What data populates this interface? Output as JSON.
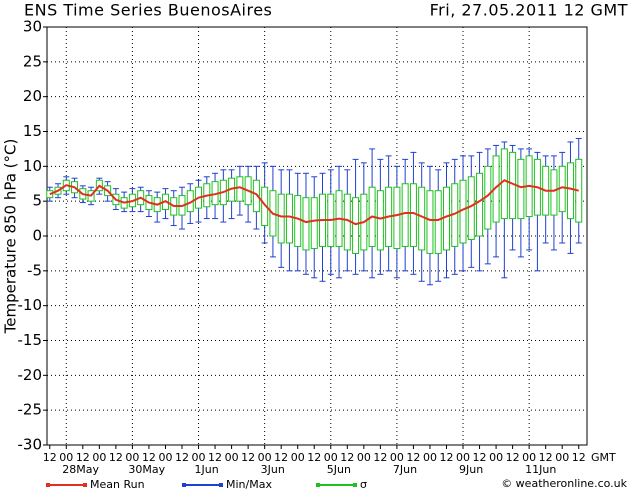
{
  "chart_data": {
    "type": "ensemble",
    "title": "ENS Time Series BuenosAires",
    "subtitle": "Fri, 27.05.2011 12 GMT",
    "y_label": "Temperature 850 hPa (°C)",
    "x_label": "GMT",
    "credit": "© weatheronline.co.uk",
    "xlim": [
      -2,
      390
    ],
    "ylim": [
      -30,
      30
    ],
    "yticks": [
      -30,
      -25,
      -20,
      -15,
      -10,
      -5,
      0,
      5,
      10,
      15,
      20,
      25,
      30
    ],
    "grid": true,
    "xticks": [
      {
        "value": 0,
        "label": "12"
      },
      {
        "value": 12,
        "label": "00"
      },
      {
        "value": 24,
        "label": "12"
      },
      {
        "value": 36,
        "label": "00"
      },
      {
        "value": 48,
        "label": "12"
      },
      {
        "value": 60,
        "label": "00"
      },
      {
        "value": 72,
        "label": "12"
      },
      {
        "value": 84,
        "label": "00"
      },
      {
        "value": 96,
        "label": "12"
      },
      {
        "value": 108,
        "label": "00"
      },
      {
        "value": 120,
        "label": "12"
      },
      {
        "value": 132,
        "label": "00"
      },
      {
        "value": 144,
        "label": "12"
      },
      {
        "value": 156,
        "label": "00"
      },
      {
        "value": 168,
        "label": "12"
      },
      {
        "value": 180,
        "label": "00"
      },
      {
        "value": 192,
        "label": "12"
      },
      {
        "value": 204,
        "label": "00"
      },
      {
        "value": 216,
        "label": "12"
      },
      {
        "value": 228,
        "label": "00"
      },
      {
        "value": 240,
        "label": "12"
      },
      {
        "value": 252,
        "label": "00"
      },
      {
        "value": 264,
        "label": "12"
      },
      {
        "value": 276,
        "label": "00"
      },
      {
        "value": 288,
        "label": "12"
      },
      {
        "value": 300,
        "label": "00"
      },
      {
        "value": 312,
        "label": "12"
      },
      {
        "value": 324,
        "label": "00"
      },
      {
        "value": 336,
        "label": "12"
      },
      {
        "value": 348,
        "label": "00"
      },
      {
        "value": 360,
        "label": "12"
      },
      {
        "value": 372,
        "label": "00"
      },
      {
        "value": 384,
        "label": "12"
      }
    ],
    "day_labels": [
      {
        "value": 12,
        "label": "28May"
      },
      {
        "value": 60,
        "label": "30May"
      },
      {
        "value": 108,
        "label": "1Jun"
      },
      {
        "value": 156,
        "label": "3Jun"
      },
      {
        "value": 204,
        "label": "5Jun"
      },
      {
        "value": 252,
        "label": "7Jun"
      },
      {
        "value": 300,
        "label": "9Jun"
      },
      {
        "value": 348,
        "label": "11Jun"
      }
    ],
    "x": [
      0,
      6,
      12,
      18,
      24,
      30,
      36,
      42,
      48,
      54,
      60,
      66,
      72,
      78,
      84,
      90,
      96,
      102,
      108,
      114,
      120,
      126,
      132,
      138,
      144,
      150,
      156,
      162,
      168,
      174,
      180,
      186,
      192,
      198,
      204,
      210,
      216,
      222,
      228,
      234,
      240,
      246,
      252,
      258,
      264,
      270,
      276,
      282,
      288,
      294,
      300,
      306,
      312,
      318,
      324,
      330,
      336,
      342,
      348,
      354,
      360,
      366,
      372,
      378,
      384
    ],
    "series": [
      {
        "name": "Mean Run",
        "color": "#e03020",
        "values": [
          6.0,
          6.5,
          7.3,
          7.0,
          6.0,
          5.8,
          7.2,
          6.5,
          5.2,
          4.8,
          5.0,
          5.5,
          4.8,
          4.5,
          5.0,
          4.3,
          4.3,
          4.8,
          5.5,
          5.8,
          6.0,
          6.3,
          6.8,
          7.0,
          6.5,
          6.0,
          4.5,
          3.2,
          2.8,
          2.8,
          2.5,
          2.0,
          2.2,
          2.3,
          2.3,
          2.5,
          2.3,
          1.7,
          2.0,
          2.8,
          2.5,
          2.8,
          3.0,
          3.3,
          3.3,
          2.8,
          2.3,
          2.3,
          2.8,
          3.2,
          3.8,
          4.3,
          5.0,
          5.8,
          7.0,
          8.0,
          7.5,
          7.0,
          7.2,
          7.0,
          6.5,
          6.5,
          7.0,
          6.8,
          6.5
        ]
      },
      {
        "name": "Min/Max",
        "color": "#2040d0",
        "low": [
          5.0,
          5.5,
          6.0,
          5.5,
          4.8,
          4.5,
          6.0,
          5.0,
          3.8,
          3.5,
          3.5,
          3.5,
          2.8,
          2.0,
          2.5,
          1.5,
          1.0,
          1.8,
          2.0,
          2.5,
          2.5,
          2.0,
          2.5,
          3.0,
          2.0,
          1.0,
          -1.0,
          -3.0,
          -4.5,
          -5.0,
          -5.0,
          -5.5,
          -6.0,
          -6.5,
          -5.5,
          -6.0,
          -5.0,
          -5.5,
          -5.0,
          -6.0,
          -5.5,
          -5.0,
          -6.0,
          -5.0,
          -5.5,
          -6.5,
          -7.0,
          -6.5,
          -6.0,
          -5.5,
          -5.0,
          -4.5,
          -5.0,
          -4.0,
          -3.0,
          -6.0,
          -2.0,
          -3.0,
          -2.0,
          -5.0,
          -1.0,
          -2.0,
          -1.0,
          -2.5,
          -1.0
        ],
        "high": [
          7.0,
          7.5,
          8.5,
          8.3,
          7.2,
          7.0,
          8.3,
          7.8,
          6.8,
          6.3,
          6.8,
          7.0,
          6.5,
          6.3,
          6.8,
          6.5,
          7.0,
          7.5,
          8.0,
          8.5,
          9.0,
          9.5,
          9.5,
          10.0,
          10.0,
          10.0,
          10.5,
          10.0,
          9.5,
          9.5,
          9.0,
          9.0,
          8.5,
          9.0,
          9.5,
          10.0,
          9.5,
          11.0,
          10.5,
          12.5,
          11.0,
          11.5,
          10.0,
          11.0,
          12.0,
          10.5,
          10.0,
          9.5,
          10.5,
          11.0,
          11.5,
          11.5,
          12.0,
          12.5,
          13.0,
          13.5,
          13.0,
          12.5,
          12.5,
          12.0,
          11.5,
          11.5,
          12.0,
          13.5,
          14.0
        ]
      },
      {
        "name": "σ",
        "color": "#20c020",
        "low": [
          5.5,
          6.0,
          6.5,
          6.2,
          5.3,
          5.0,
          6.5,
          5.8,
          4.5,
          4.0,
          4.2,
          4.5,
          3.8,
          3.5,
          3.8,
          3.0,
          3.0,
          3.5,
          4.0,
          4.2,
          4.5,
          4.5,
          5.0,
          5.0,
          4.5,
          3.5,
          1.5,
          0.0,
          -1.0,
          -1.0,
          -1.5,
          -2.0,
          -1.8,
          -1.5,
          -1.5,
          -1.5,
          -2.0,
          -2.5,
          -2.0,
          -1.5,
          -2.0,
          -1.5,
          -1.8,
          -1.5,
          -1.5,
          -2.0,
          -2.5,
          -2.5,
          -2.0,
          -1.5,
          -1.0,
          -0.5,
          0.0,
          1.0,
          2.0,
          2.5,
          2.5,
          2.5,
          2.8,
          3.0,
          3.0,
          3.0,
          3.5,
          2.5,
          2.0
        ],
        "high": [
          6.5,
          7.0,
          8.0,
          7.8,
          6.8,
          6.5,
          8.0,
          7.2,
          6.0,
          5.5,
          6.0,
          6.5,
          5.8,
          5.5,
          6.0,
          5.5,
          5.8,
          6.5,
          7.0,
          7.5,
          7.8,
          8.0,
          8.3,
          8.5,
          8.5,
          8.0,
          7.0,
          6.5,
          6.0,
          6.0,
          5.8,
          5.5,
          5.5,
          6.0,
          6.0,
          6.5,
          6.0,
          5.5,
          6.0,
          7.0,
          6.5,
          7.0,
          7.0,
          7.5,
          7.5,
          7.0,
          6.5,
          6.5,
          7.0,
          7.5,
          8.0,
          8.5,
          9.0,
          10.0,
          11.5,
          12.5,
          12.0,
          11.0,
          11.5,
          11.0,
          10.0,
          9.5,
          10.0,
          10.5,
          11.0
        ]
      }
    ]
  }
}
